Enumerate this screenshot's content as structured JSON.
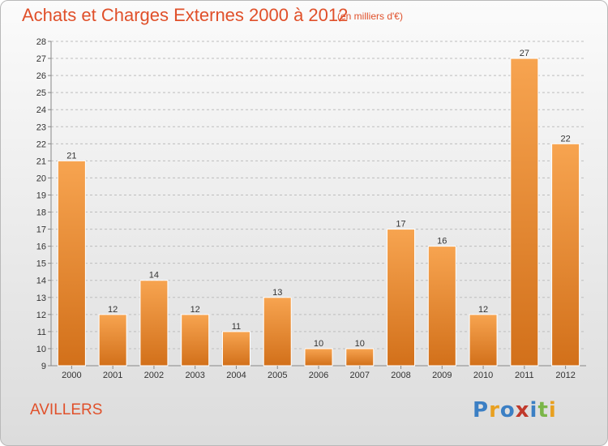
{
  "header": {
    "title": "Achats et Charges Externes 2000 à 2012",
    "subtitle": "(en milliers d'€)"
  },
  "footer": {
    "commune": "AVILLERS",
    "logo_text": "Proxiti",
    "logo_letters": [
      {
        "ch": "P",
        "color": "#3b7fc4"
      },
      {
        "ch": "r",
        "color": "#e8a020"
      },
      {
        "ch": "o",
        "color": "#3b7fc4"
      },
      {
        "ch": "x",
        "color": "#c0392b"
      },
      {
        "ch": "i",
        "color": "#3b7fc4"
      },
      {
        "ch": "t",
        "color": "#7ab648"
      },
      {
        "ch": "i",
        "color": "#e8a020"
      }
    ]
  },
  "colors": {
    "accent": "#e0502a",
    "bar_top": "#f7a450",
    "bar_bottom": "#d2701a",
    "grid": "#bdbdbd"
  },
  "chart_data": {
    "type": "bar",
    "title": "Achats et Charges Externes 2000 à 2012",
    "subtitle": "(en milliers d'€)",
    "categories": [
      "2000",
      "2001",
      "2002",
      "2003",
      "2004",
      "2005",
      "2006",
      "2007",
      "2008",
      "2009",
      "2010",
      "2011",
      "2012"
    ],
    "values": [
      21,
      12,
      14,
      12,
      11,
      13,
      10,
      10,
      17,
      16,
      12,
      27,
      22
    ],
    "xlabel": "",
    "ylabel": "",
    "ylim": [
      9,
      28
    ],
    "yticks": [
      9,
      10,
      11,
      12,
      13,
      14,
      15,
      16,
      17,
      18,
      19,
      20,
      21,
      22,
      23,
      24,
      25,
      26,
      27,
      28
    ],
    "grid": true,
    "legend": "none"
  }
}
